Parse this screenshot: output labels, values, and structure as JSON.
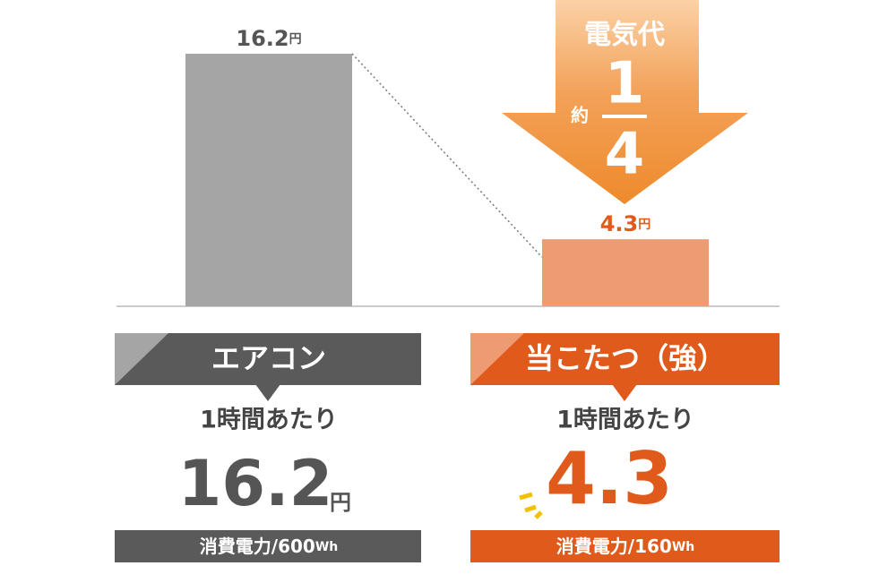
{
  "chart_data": {
    "type": "bar",
    "categories": [
      "エアコン",
      "当こたつ（強）"
    ],
    "values": [
      16.2,
      4.3
    ],
    "unit": "円",
    "colors": [
      "#a5a5a5",
      "#ee9b74"
    ],
    "ylim": [
      0,
      16.2
    ],
    "per_hour": "1時間あたり",
    "power_label": "消費電力/",
    "power": [
      600,
      160
    ],
    "power_unit": "Wh",
    "annotation": {
      "title": "電気代",
      "prefix": "約",
      "numerator": "1",
      "denominator": "4"
    }
  }
}
